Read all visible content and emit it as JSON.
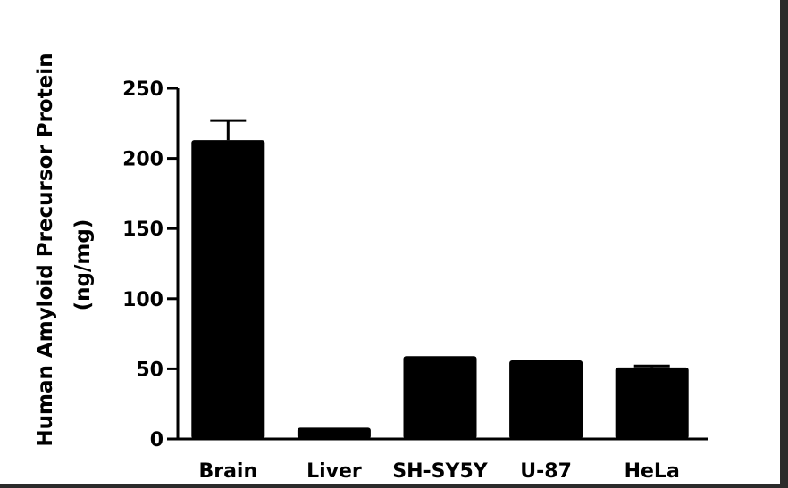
{
  "chart_data": {
    "type": "bar",
    "categories": [
      "Brain",
      "Liver",
      "SH-SY5Y",
      "U-87",
      "HeLa"
    ],
    "values": [
      213,
      8,
      59,
      56,
      51
    ],
    "error_upper": [
      227,
      null,
      null,
      null,
      52
    ],
    "ylabel_line1": "Human Amyloid Precursor Protein",
    "ylabel_line2": "(ng/mg)",
    "ylim": [
      0,
      250
    ],
    "yticks": [
      0,
      50,
      100,
      150,
      200,
      250
    ],
    "grid": false,
    "bar_color": "#000000"
  }
}
